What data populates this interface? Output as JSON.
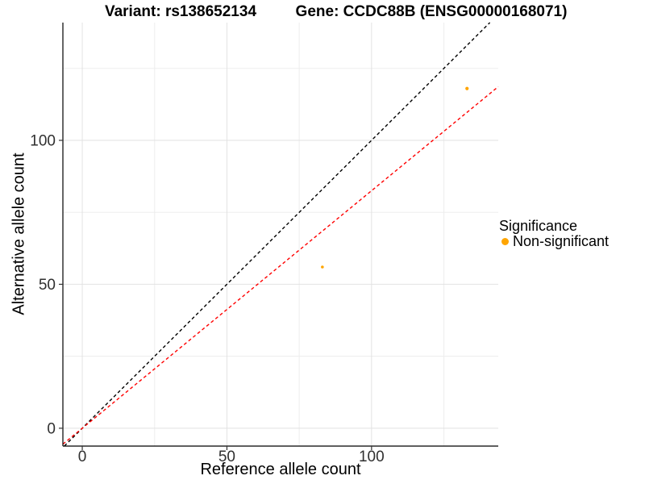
{
  "titles": {
    "left": "Variant: rs138652134",
    "right": "Gene: CCDC88B (ENSG00000168071)"
  },
  "chart_data": {
    "type": "scatter",
    "title_left": "Variant: rs138652134",
    "title_right": "Gene: CCDC88B (ENSG00000168071)",
    "xlabel": "Reference allele count",
    "ylabel": "Alternative allele count",
    "xlim": [
      -6.7,
      143.8
    ],
    "ylim": [
      -6.2,
      140.9
    ],
    "x_major_ticks": [
      0,
      50,
      100
    ],
    "y_major_ticks": [
      0,
      50,
      100
    ],
    "x_minor_gridlines": [
      25,
      75,
      125
    ],
    "y_minor_gridlines": [
      25,
      75,
      125
    ],
    "grid": true,
    "points": [
      {
        "x": 133,
        "y": 118,
        "radius": 2.1,
        "color": "#FFA500",
        "significance": "Non-significant"
      },
      {
        "x": 83,
        "y": 56,
        "radius": 1.8,
        "color": "#FFA500",
        "significance": "Non-significant"
      }
    ],
    "lines": [
      {
        "name": "identity-line",
        "slope": 1.0,
        "intercept": 0,
        "color": "#000000",
        "style": "dashed"
      },
      {
        "name": "fit-line",
        "slope": 0.825,
        "intercept": 0,
        "color": "#FF0000",
        "style": "dashed"
      }
    ],
    "legend": {
      "title": "Significance",
      "position": "right",
      "items": [
        {
          "label": "Non-significant",
          "color": "#FFA500"
        }
      ]
    },
    "colors": {
      "point": "#FFA500",
      "identity_line": "#000000",
      "fit_line": "#FF0000",
      "grid_major": "#e2e2e2",
      "grid_minor": "#ededed",
      "axis_line": "#000000",
      "tick_label": "#303030"
    }
  }
}
